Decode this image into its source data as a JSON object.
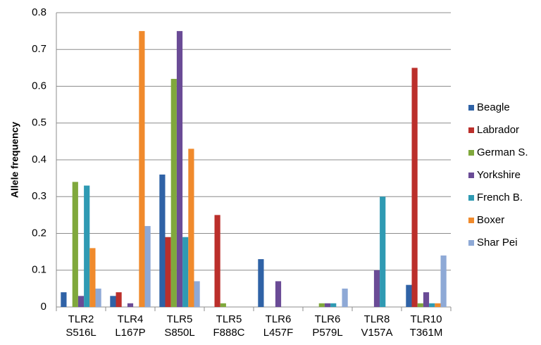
{
  "chart_data": {
    "type": "bar",
    "y_label": "Allele frequency",
    "categories": [
      "TLR2\nS516L",
      "TLR4\nL167P",
      "TLR5\nS850L",
      "TLR5\nF888C",
      "TLR6\nL457F",
      "TLR6\nP579L",
      "TLR8\nV157A",
      "TLR10\nT361M"
    ],
    "series": [
      {
        "name": "Beagle",
        "color": "#2f62a6",
        "values": [
          0.04,
          0.03,
          0.36,
          0,
          0.13,
          0,
          0,
          0.06
        ]
      },
      {
        "name": "Labrador",
        "color": "#bb2f2b",
        "values": [
          0,
          0.04,
          0.19,
          0.25,
          0,
          0,
          0,
          0.65
        ]
      },
      {
        "name": "German S.",
        "color": "#80a83c",
        "values": [
          0.34,
          0,
          0.62,
          0.01,
          0,
          0.01,
          0,
          0.01
        ]
      },
      {
        "name": "Yorkshire",
        "color": "#6a4b96",
        "values": [
          0.03,
          0.01,
          0.75,
          0,
          0.07,
          0.01,
          0.1,
          0.04
        ]
      },
      {
        "name": "French B.",
        "color": "#2f9ab3",
        "values": [
          0.33,
          0,
          0.19,
          0,
          0,
          0.01,
          0.3,
          0.01
        ]
      },
      {
        "name": "Boxer",
        "color": "#f08a2c",
        "values": [
          0.16,
          0.75,
          0.43,
          0,
          0,
          0,
          0,
          0.01
        ]
      },
      {
        "name": "Shar Pei",
        "color": "#8ea9d6",
        "values": [
          0.05,
          0.22,
          0.07,
          0,
          0,
          0.05,
          0,
          0.14
        ]
      }
    ],
    "ylim": [
      0,
      0.8
    ],
    "yticks": [
      0,
      0.1,
      0.2,
      0.3,
      0.4,
      0.5,
      0.6,
      0.7,
      0.8
    ],
    "grid": true,
    "legend": "right"
  }
}
